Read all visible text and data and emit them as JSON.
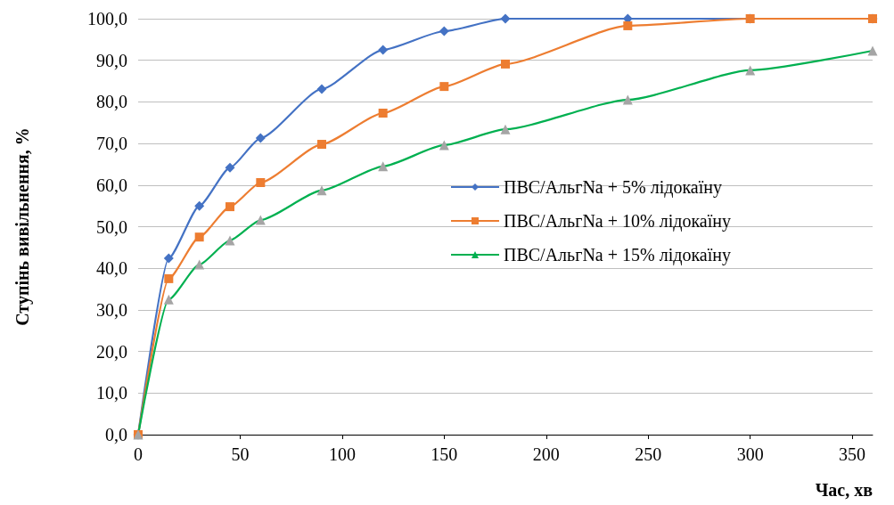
{
  "chart_data": {
    "type": "line",
    "xlabel": "Час, хв",
    "ylabel": "Ступінь вивільнення, %",
    "x": [
      0,
      15,
      30,
      45,
      60,
      90,
      120,
      150,
      180,
      240,
      300,
      360
    ],
    "series": [
      {
        "name": "ПВС/АльгNa + 5% лідокаїну",
        "color": "#4472c4",
        "marker": "diamond",
        "values": [
          0,
          42.4,
          55.0,
          64.2,
          71.3,
          83.1,
          92.5,
          97.0,
          100,
          100,
          100,
          100
        ]
      },
      {
        "name": "ПВС/АльгNa + 10% лідокаїну",
        "color": "#ed7d31",
        "marker": "square",
        "values": [
          0,
          37.5,
          47.5,
          54.8,
          60.6,
          69.8,
          77.3,
          83.7,
          89.1,
          98.3,
          100,
          100
        ]
      },
      {
        "name": "ПВС/АльгNa + 15% лідокаїну",
        "color": "#00b050",
        "colors": [
          "#a5a5a5",
          "#a5a5a5",
          "#a5a5a5",
          "#a5a5a5",
          "#a5a5a5",
          "#a5a5a5",
          "#a5a5a5",
          "#a5a5a5",
          "#a5a5a5",
          "#a5a5a5",
          "#a5a5a5",
          "#a5a5a5"
        ],
        "marker": "triangle",
        "values": [
          0,
          32.5,
          40.9,
          46.7,
          51.6,
          58.7,
          64.5,
          69.6,
          73.4,
          80.5,
          87.6,
          92.3
        ]
      }
    ],
    "xlim": [
      0,
      360
    ],
    "xticks": [
      0,
      50,
      100,
      150,
      200,
      250,
      300,
      350
    ],
    "ylim": [
      0,
      100
    ],
    "yticks": [
      {
        "value": 0,
        "label": "0,0"
      },
      {
        "value": 10,
        "label": "10,0"
      },
      {
        "value": 20,
        "label": "20,0"
      },
      {
        "value": 30,
        "label": "30,0"
      },
      {
        "value": 40,
        "label": "40,0"
      },
      {
        "value": 50,
        "label": "50,0"
      },
      {
        "value": 60,
        "label": "60,0"
      },
      {
        "value": 70,
        "label": "70,0"
      },
      {
        "value": 80,
        "label": "80,0"
      },
      {
        "value": 90,
        "label": "90,0"
      },
      {
        "value": 100,
        "label": "100,0"
      }
    ],
    "grid": "y",
    "legend": "right",
    "line_style": "solid"
  }
}
